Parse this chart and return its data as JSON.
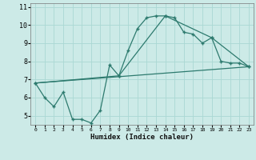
{
  "xlabel": "Humidex (Indice chaleur)",
  "bg_color": "#cceae7",
  "line_color": "#2d7a6e",
  "grid_color": "#aad8d3",
  "xlim": [
    -0.5,
    23.5
  ],
  "ylim": [
    4.5,
    11.2
  ],
  "yticks": [
    5,
    6,
    7,
    8,
    9,
    10,
    11
  ],
  "xticks": [
    0,
    1,
    2,
    3,
    4,
    5,
    6,
    7,
    8,
    9,
    10,
    11,
    12,
    13,
    14,
    15,
    16,
    17,
    18,
    19,
    20,
    21,
    22,
    23
  ],
  "line1_x": [
    0,
    1,
    2,
    3,
    4,
    5,
    6,
    7,
    8,
    9,
    10,
    11,
    12,
    13,
    14,
    15,
    16,
    17,
    18,
    19,
    20,
    21,
    22,
    23
  ],
  "line1_y": [
    6.8,
    6.0,
    5.5,
    6.3,
    4.8,
    4.8,
    4.6,
    5.3,
    7.8,
    7.2,
    8.6,
    9.8,
    10.4,
    10.5,
    10.5,
    10.4,
    9.6,
    9.5,
    9.0,
    9.3,
    8.0,
    7.9,
    7.9,
    7.7
  ],
  "line2_x": [
    0,
    9,
    14,
    19,
    23
  ],
  "line2_y": [
    6.8,
    7.2,
    10.5,
    9.3,
    7.7
  ],
  "line3_x": [
    0,
    23
  ],
  "line3_y": [
    6.8,
    7.7
  ]
}
